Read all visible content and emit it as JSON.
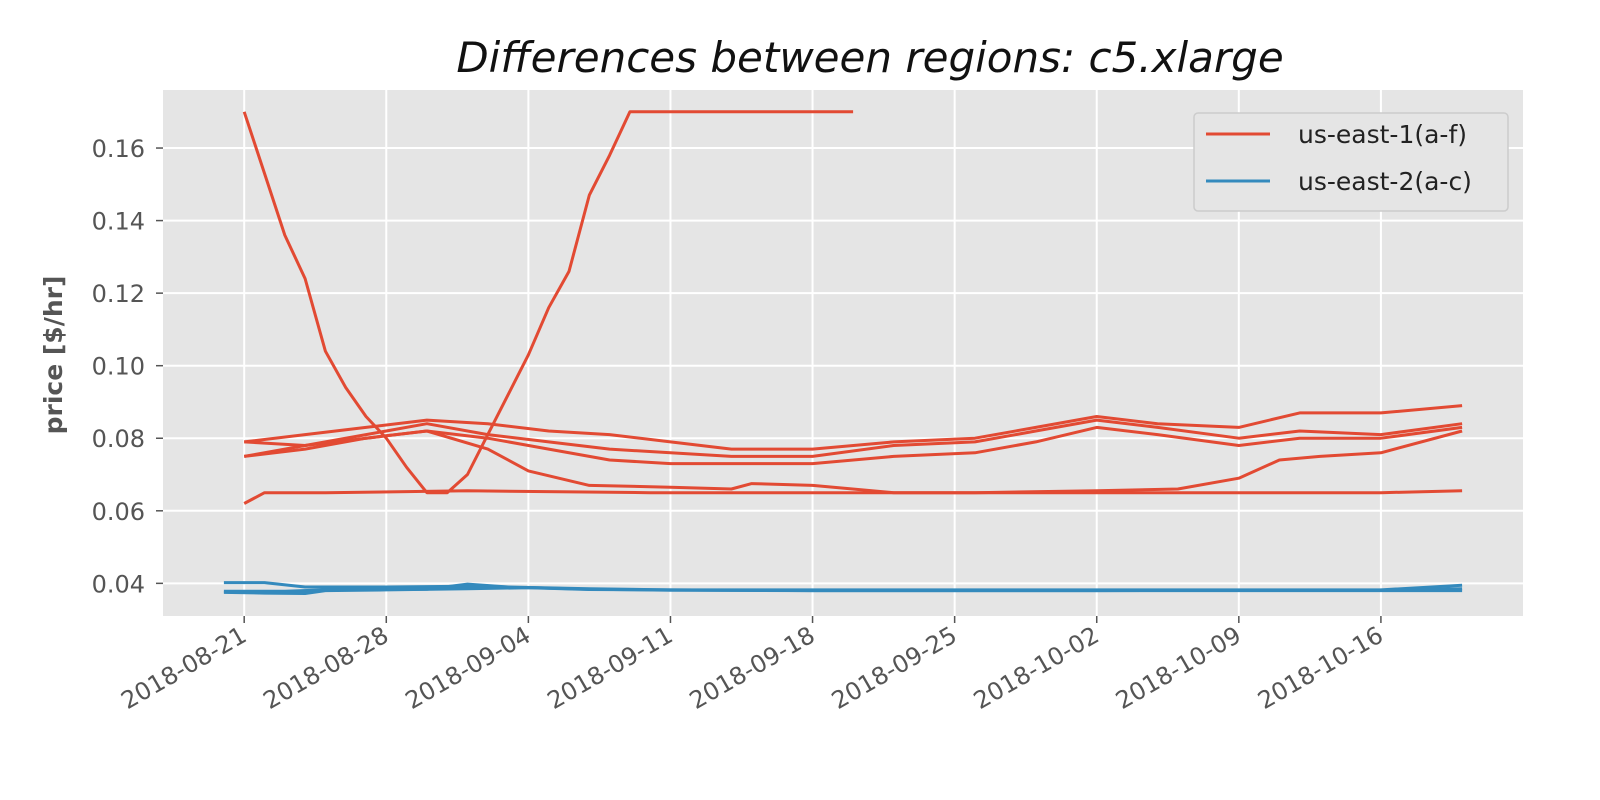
{
  "chart_data": {
    "type": "line",
    "title": "Differences between regions: c5.xlarge",
    "xlabel": "",
    "ylabel": "price [$/hr]",
    "xlim": [
      "2018-08-17",
      "2018-10-23"
    ],
    "ylim": [
      0.031,
      0.176
    ],
    "x_ticks": [
      "2018-08-21",
      "2018-08-28",
      "2018-09-04",
      "2018-09-11",
      "2018-09-18",
      "2018-09-25",
      "2018-10-02",
      "2018-10-09",
      "2018-10-16"
    ],
    "y_ticks": [
      0.04,
      0.06,
      0.08,
      0.1,
      0.12,
      0.14,
      0.16
    ],
    "y_tick_labels": [
      "0.04",
      "0.06",
      "0.08",
      "0.10",
      "0.12",
      "0.14",
      "0.16"
    ],
    "grid": true,
    "legend_position": "top-right",
    "colors": {
      "us-east-1": "#E24A33",
      "us-east-2": "#348ABD",
      "plot_bg": "#E5E5E5",
      "grid": "#FFFFFF"
    },
    "legend": [
      {
        "label": "us-east-1(a-f)",
        "color": "#E24A33"
      },
      {
        "label": "us-east-2(a-c)",
        "color": "#348ABD"
      }
    ],
    "series": [
      {
        "group": "us-east-1(a-f)",
        "color": "#E24A33",
        "points": [
          [
            "2018-08-21",
            0.17
          ],
          [
            "2018-08-22",
            0.153
          ],
          [
            "2018-08-23",
            0.136
          ],
          [
            "2018-08-24",
            0.124
          ],
          [
            "2018-08-25",
            0.104
          ],
          [
            "2018-08-26",
            0.094
          ],
          [
            "2018-08-27",
            0.086
          ],
          [
            "2018-08-28",
            0.08
          ],
          [
            "2018-08-29",
            0.072
          ],
          [
            "2018-08-30",
            0.065
          ],
          [
            "2018-08-31",
            0.065
          ],
          [
            "2018-09-01",
            0.07
          ],
          [
            "2018-09-02",
            0.081
          ],
          [
            "2018-09-04",
            0.103
          ],
          [
            "2018-09-05",
            0.116
          ],
          [
            "2018-09-06",
            0.126
          ],
          [
            "2018-09-07",
            0.147
          ],
          [
            "2018-09-08",
            0.158
          ],
          [
            "2018-09-09",
            0.17
          ],
          [
            "2018-09-20",
            0.17
          ]
        ]
      },
      {
        "group": "us-east-1(a-f)",
        "color": "#E24A33",
        "points": [
          [
            "2018-08-21",
            0.062
          ],
          [
            "2018-08-22",
            0.065
          ],
          [
            "2018-08-25",
            0.065
          ],
          [
            "2018-09-01",
            0.0655
          ],
          [
            "2018-09-10",
            0.065
          ],
          [
            "2018-09-18",
            0.065
          ],
          [
            "2018-10-02",
            0.065
          ],
          [
            "2018-10-09",
            0.065
          ],
          [
            "2018-10-16",
            0.065
          ],
          [
            "2018-10-20",
            0.0655
          ]
        ]
      },
      {
        "group": "us-east-1(a-f)",
        "color": "#E24A33",
        "points": [
          [
            "2018-08-21",
            0.079
          ],
          [
            "2018-08-24",
            0.081
          ],
          [
            "2018-08-27",
            0.083
          ],
          [
            "2018-08-30",
            0.085
          ],
          [
            "2018-09-02",
            0.084
          ],
          [
            "2018-09-05",
            0.082
          ],
          [
            "2018-09-08",
            0.081
          ],
          [
            "2018-09-11",
            0.079
          ],
          [
            "2018-09-14",
            0.077
          ],
          [
            "2018-09-18",
            0.077
          ],
          [
            "2018-09-22",
            0.079
          ],
          [
            "2018-09-26",
            0.08
          ],
          [
            "2018-09-29",
            0.083
          ],
          [
            "2018-10-02",
            0.086
          ],
          [
            "2018-10-05",
            0.084
          ],
          [
            "2018-10-09",
            0.083
          ],
          [
            "2018-10-12",
            0.087
          ],
          [
            "2018-10-16",
            0.087
          ],
          [
            "2018-10-20",
            0.089
          ]
        ]
      },
      {
        "group": "us-east-1(a-f)",
        "color": "#E24A33",
        "points": [
          [
            "2018-08-21",
            0.075
          ],
          [
            "2018-08-24",
            0.078
          ],
          [
            "2018-08-27",
            0.081
          ],
          [
            "2018-08-30",
            0.084
          ],
          [
            "2018-09-02",
            0.081
          ],
          [
            "2018-09-05",
            0.079
          ],
          [
            "2018-09-08",
            0.077
          ],
          [
            "2018-09-11",
            0.076
          ],
          [
            "2018-09-14",
            0.075
          ],
          [
            "2018-09-18",
            0.075
          ],
          [
            "2018-09-22",
            0.078
          ],
          [
            "2018-09-26",
            0.079
          ],
          [
            "2018-09-29",
            0.082
          ],
          [
            "2018-10-02",
            0.085
          ],
          [
            "2018-10-05",
            0.083
          ],
          [
            "2018-10-09",
            0.08
          ],
          [
            "2018-10-12",
            0.082
          ],
          [
            "2018-10-16",
            0.081
          ],
          [
            "2018-10-20",
            0.084
          ]
        ]
      },
      {
        "group": "us-east-1(a-f)",
        "color": "#E24A33",
        "points": [
          [
            "2018-08-21",
            0.075
          ],
          [
            "2018-08-24",
            0.077
          ],
          [
            "2018-08-27",
            0.08
          ],
          [
            "2018-08-30",
            0.082
          ],
          [
            "2018-09-02",
            0.08
          ],
          [
            "2018-09-05",
            0.077
          ],
          [
            "2018-09-08",
            0.074
          ],
          [
            "2018-09-11",
            0.073
          ],
          [
            "2018-09-14",
            0.073
          ],
          [
            "2018-09-18",
            0.073
          ],
          [
            "2018-09-22",
            0.075
          ],
          [
            "2018-09-26",
            0.076
          ],
          [
            "2018-09-29",
            0.079
          ],
          [
            "2018-10-02",
            0.083
          ],
          [
            "2018-10-05",
            0.081
          ],
          [
            "2018-10-09",
            0.078
          ],
          [
            "2018-10-12",
            0.08
          ],
          [
            "2018-10-16",
            0.08
          ],
          [
            "2018-10-20",
            0.083
          ]
        ]
      },
      {
        "group": "us-east-1(a-f)",
        "color": "#E24A33",
        "points": [
          [
            "2018-08-21",
            0.079
          ],
          [
            "2018-08-24",
            0.078
          ],
          [
            "2018-08-27",
            0.08
          ],
          [
            "2018-08-30",
            0.082
          ],
          [
            "2018-09-02",
            0.077
          ],
          [
            "2018-09-04",
            0.071
          ],
          [
            "2018-09-07",
            0.067
          ],
          [
            "2018-09-11",
            0.0665
          ],
          [
            "2018-09-14",
            0.066
          ],
          [
            "2018-09-15",
            0.0675
          ],
          [
            "2018-09-18",
            0.067
          ],
          [
            "2018-09-22",
            0.065
          ],
          [
            "2018-09-26",
            0.065
          ],
          [
            "2018-10-02",
            0.0655
          ],
          [
            "2018-10-06",
            0.066
          ],
          [
            "2018-10-09",
            0.069
          ],
          [
            "2018-10-11",
            0.074
          ],
          [
            "2018-10-13",
            0.075
          ],
          [
            "2018-10-16",
            0.076
          ],
          [
            "2018-10-20",
            0.082
          ]
        ]
      },
      {
        "group": "us-east-2(a-c)",
        "color": "#348ABD",
        "points": [
          [
            "2018-08-20",
            0.0402
          ],
          [
            "2018-08-22",
            0.0402
          ],
          [
            "2018-08-24",
            0.039
          ],
          [
            "2018-08-28",
            0.039
          ],
          [
            "2018-09-01",
            0.0392
          ],
          [
            "2018-09-03",
            0.039
          ],
          [
            "2018-09-07",
            0.0385
          ],
          [
            "2018-09-11",
            0.0382
          ],
          [
            "2018-09-18",
            0.0382
          ],
          [
            "2018-10-02",
            0.0382
          ],
          [
            "2018-10-09",
            0.0382
          ],
          [
            "2018-10-16",
            0.0382
          ],
          [
            "2018-10-20",
            0.0395
          ]
        ]
      },
      {
        "group": "us-east-2(a-c)",
        "color": "#348ABD",
        "points": [
          [
            "2018-08-20",
            0.0375
          ],
          [
            "2018-08-22",
            0.0373
          ],
          [
            "2018-08-24",
            0.0372
          ],
          [
            "2018-08-25",
            0.038
          ],
          [
            "2018-08-28",
            0.0382
          ],
          [
            "2018-09-01",
            0.0385
          ],
          [
            "2018-09-04",
            0.0388
          ],
          [
            "2018-09-07",
            0.0383
          ],
          [
            "2018-09-11",
            0.0382
          ],
          [
            "2018-09-18",
            0.038
          ],
          [
            "2018-10-02",
            0.038
          ],
          [
            "2018-10-16",
            0.038
          ],
          [
            "2018-10-20",
            0.038
          ]
        ]
      },
      {
        "group": "us-east-2(a-c)",
        "color": "#348ABD",
        "points": [
          [
            "2018-08-20",
            0.0378
          ],
          [
            "2018-08-23",
            0.0378
          ],
          [
            "2018-08-25",
            0.0382
          ],
          [
            "2018-08-30",
            0.0384
          ],
          [
            "2018-09-01",
            0.0398
          ],
          [
            "2018-09-03",
            0.039
          ],
          [
            "2018-09-07",
            0.0384
          ],
          [
            "2018-09-11",
            0.0381
          ],
          [
            "2018-09-18",
            0.038
          ],
          [
            "2018-10-02",
            0.038
          ],
          [
            "2018-10-16",
            0.0381
          ],
          [
            "2018-10-20",
            0.0385
          ]
        ]
      }
    ]
  }
}
